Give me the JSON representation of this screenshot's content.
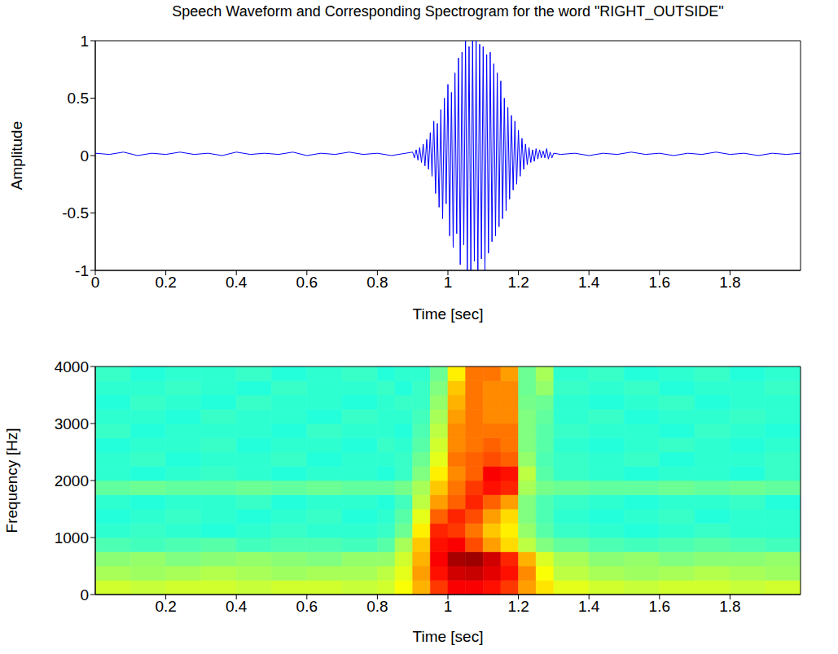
{
  "chart_data": [
    {
      "type": "line",
      "title": "Speech Waveform and Corresponding Spectrogram for the word \"RIGHT_OUTSIDE\"",
      "x_label": "Time [sec]",
      "y_label": "Amplitude",
      "color": "#0000ff",
      "grid": false,
      "xlim": [
        0,
        2
      ],
      "xticks": [
        0,
        0.2,
        0.4,
        0.6,
        0.8,
        1,
        1.2,
        1.4,
        1.6,
        1.8
      ],
      "ylim": [
        -1,
        1
      ],
      "yticks": [
        -1,
        -0.5,
        0,
        0.5,
        1
      ],
      "x": [
        0,
        0.04,
        0.08,
        0.12,
        0.16,
        0.2,
        0.24,
        0.28,
        0.32,
        0.36,
        0.4,
        0.44,
        0.48,
        0.52,
        0.56,
        0.6,
        0.64,
        0.68,
        0.72,
        0.76,
        0.8,
        0.84,
        0.88,
        0.9,
        0.905,
        0.91,
        0.915,
        0.92,
        0.925,
        0.93,
        0.935,
        0.94,
        0.945,
        0.95,
        0.955,
        0.96,
        0.965,
        0.97,
        0.975,
        0.98,
        0.985,
        0.99,
        0.995,
        1.0,
        1.005,
        1.01,
        1.015,
        1.02,
        1.025,
        1.03,
        1.035,
        1.04,
        1.045,
        1.05,
        1.055,
        1.06,
        1.065,
        1.07,
        1.075,
        1.08,
        1.085,
        1.09,
        1.095,
        1.1,
        1.105,
        1.11,
        1.115,
        1.12,
        1.125,
        1.13,
        1.135,
        1.14,
        1.145,
        1.15,
        1.155,
        1.16,
        1.165,
        1.17,
        1.175,
        1.18,
        1.185,
        1.19,
        1.195,
        1.2,
        1.205,
        1.21,
        1.215,
        1.22,
        1.225,
        1.23,
        1.235,
        1.24,
        1.245,
        1.25,
        1.255,
        1.26,
        1.265,
        1.27,
        1.275,
        1.28,
        1.285,
        1.29,
        1.295,
        1.3,
        1.32,
        1.36,
        1.4,
        1.44,
        1.48,
        1.52,
        1.56,
        1.6,
        1.64,
        1.68,
        1.72,
        1.76,
        1.8,
        1.84,
        1.88,
        1.92,
        1.96,
        2.0
      ],
      "values": [
        0.02,
        0.01,
        0.03,
        0.0,
        0.02,
        0.01,
        0.03,
        0.01,
        0.02,
        0.0,
        0.03,
        0.01,
        0.02,
        0.01,
        0.03,
        0.0,
        0.02,
        0.01,
        0.03,
        0.01,
        0.02,
        0.0,
        0.02,
        0.03,
        -0.02,
        0.05,
        -0.04,
        0.07,
        -0.06,
        0.1,
        -0.09,
        0.14,
        -0.12,
        0.2,
        -0.18,
        0.3,
        -0.33,
        0.28,
        -0.45,
        0.4,
        -0.55,
        0.5,
        -0.42,
        0.62,
        -0.7,
        0.55,
        -0.8,
        0.72,
        -0.68,
        0.85,
        -0.95,
        0.9,
        -0.78,
        1.0,
        -1.0,
        0.95,
        -1.0,
        1.0,
        -0.92,
        1.0,
        -1.0,
        0.97,
        -0.9,
        0.95,
        -1.0,
        0.88,
        -0.85,
        0.9,
        -0.75,
        0.8,
        -0.7,
        0.72,
        -0.62,
        0.65,
        -0.55,
        0.5,
        -0.48,
        0.42,
        -0.38,
        0.35,
        -0.3,
        0.3,
        -0.25,
        0.22,
        -0.18,
        0.15,
        -0.12,
        0.1,
        -0.08,
        0.07,
        -0.06,
        0.05,
        -0.05,
        0.06,
        -0.03,
        0.05,
        -0.02,
        0.04,
        -0.02,
        0.06,
        -0.03,
        0.03,
        -0.02,
        0.02,
        0.01,
        0.02,
        0.0,
        0.02,
        0.01,
        0.03,
        0.01,
        0.02,
        0.0,
        0.02,
        0.01,
        0.03,
        0.01,
        0.02,
        0.0,
        0.02,
        0.01,
        0.02
      ]
    },
    {
      "type": "heatmap",
      "x_label": "Time [sec]",
      "y_label": "Frequency [Hz]",
      "xlim": [
        0,
        2
      ],
      "xticks": [
        0.2,
        0.4,
        0.6,
        0.8,
        1,
        1.2,
        1.4,
        1.6,
        1.8
      ],
      "ylim": [
        0,
        4000
      ],
      "yticks": [
        0,
        1000,
        2000,
        3000,
        4000
      ],
      "time_bins": [
        0,
        0.1,
        0.2,
        0.3,
        0.4,
        0.5,
        0.6,
        0.7,
        0.8,
        0.85,
        0.9,
        0.95,
        1.0,
        1.05,
        1.1,
        1.15,
        1.2,
        1.25,
        1.3,
        1.4,
        1.5,
        1.6,
        1.7,
        1.8,
        1.9,
        2.0
      ],
      "frequency_bins": [
        0,
        250,
        500,
        750,
        1000,
        1250,
        1500,
        1750,
        2000,
        2250,
        2500,
        2750,
        3000,
        3250,
        3500,
        3750,
        4000
      ],
      "zlim": [
        0,
        10
      ],
      "cells": [
        [
          5.8,
          5.7,
          5.8,
          5.8,
          5.7,
          5.8,
          5.8,
          5.7,
          5.8,
          6.2,
          7.0,
          8.2,
          8.8,
          8.8,
          8.6,
          8.2,
          7.2,
          6.5,
          6.0,
          5.8,
          5.7,
          5.8,
          5.8,
          5.7,
          5.8
        ],
        [
          5.4,
          5.3,
          5.4,
          5.5,
          5.4,
          5.3,
          5.4,
          5.4,
          5.6,
          6.0,
          7.2,
          8.6,
          9.2,
          9.3,
          9.0,
          8.6,
          7.4,
          6.2,
          5.6,
          5.4,
          5.3,
          5.4,
          5.5,
          5.4,
          5.3
        ],
        [
          5.1,
          5.2,
          5.0,
          5.1,
          5.2,
          5.1,
          5.0,
          5.2,
          5.2,
          5.8,
          7.0,
          8.8,
          9.6,
          9.7,
          9.2,
          8.4,
          7.0,
          5.9,
          5.4,
          5.1,
          5.2,
          5.0,
          5.1,
          5.1,
          5.2
        ],
        [
          4.5,
          4.4,
          4.5,
          4.6,
          4.4,
          4.5,
          4.5,
          4.4,
          4.6,
          5.4,
          6.8,
          8.6,
          8.8,
          8.0,
          7.2,
          6.6,
          5.6,
          5.0,
          4.7,
          4.5,
          4.4,
          4.5,
          4.6,
          4.5,
          4.4
        ],
        [
          4.2,
          4.3,
          4.2,
          4.1,
          4.2,
          4.3,
          4.2,
          4.2,
          4.3,
          4.8,
          6.4,
          8.4,
          8.2,
          7.6,
          6.8,
          6.4,
          5.2,
          4.6,
          4.3,
          4.2,
          4.1,
          4.2,
          4.3,
          4.2,
          4.2
        ],
        [
          4.1,
          4.2,
          4.3,
          4.2,
          4.1,
          4.2,
          4.3,
          4.1,
          4.2,
          4.6,
          6.0,
          7.8,
          8.4,
          8.0,
          7.2,
          6.6,
          5.0,
          4.5,
          4.2,
          4.1,
          4.2,
          4.3,
          4.1,
          4.2,
          4.2
        ],
        [
          4.2,
          4.1,
          4.2,
          4.2,
          4.3,
          4.1,
          4.2,
          4.2,
          4.1,
          4.4,
          5.6,
          7.2,
          7.8,
          8.4,
          7.8,
          7.2,
          5.0,
          4.5,
          4.3,
          4.2,
          4.1,
          4.2,
          4.2,
          4.3,
          4.1
        ],
        [
          4.7,
          4.8,
          4.7,
          4.7,
          4.8,
          4.7,
          4.8,
          4.7,
          4.7,
          4.9,
          5.4,
          6.8,
          7.6,
          8.2,
          8.6,
          8.4,
          5.4,
          4.9,
          4.8,
          4.7,
          4.7,
          4.8,
          4.7,
          4.8,
          4.7
        ],
        [
          4.2,
          4.1,
          4.2,
          4.3,
          4.2,
          4.1,
          4.2,
          4.2,
          4.1,
          4.3,
          5.0,
          6.4,
          7.4,
          7.8,
          8.8,
          8.6,
          5.6,
          4.6,
          4.3,
          4.2,
          4.1,
          4.2,
          4.2,
          4.1,
          4.3
        ],
        [
          4.2,
          4.3,
          4.1,
          4.2,
          4.2,
          4.3,
          4.1,
          4.2,
          4.2,
          4.3,
          4.8,
          6.0,
          7.6,
          7.8,
          8.0,
          7.8,
          5.2,
          4.5,
          4.3,
          4.2,
          4.3,
          4.1,
          4.2,
          4.2,
          4.3
        ],
        [
          4.1,
          4.2,
          4.2,
          4.3,
          4.1,
          4.2,
          4.2,
          4.1,
          4.3,
          4.2,
          4.6,
          5.8,
          7.4,
          7.6,
          7.8,
          7.6,
          5.0,
          4.6,
          4.2,
          4.1,
          4.2,
          4.3,
          4.2,
          4.1,
          4.2
        ],
        [
          4.3,
          4.1,
          4.2,
          4.2,
          4.2,
          4.1,
          4.3,
          4.2,
          4.2,
          4.1,
          4.5,
          5.6,
          7.4,
          7.6,
          7.6,
          7.6,
          5.0,
          4.6,
          4.3,
          4.2,
          4.2,
          4.1,
          4.3,
          4.2,
          4.1
        ],
        [
          4.2,
          4.2,
          4.1,
          4.3,
          4.2,
          4.2,
          4.1,
          4.3,
          4.2,
          4.2,
          4.4,
          5.4,
          7.2,
          7.6,
          7.4,
          7.4,
          5.0,
          4.7,
          4.2,
          4.3,
          4.1,
          4.2,
          4.2,
          4.3,
          4.2
        ],
        [
          4.1,
          4.3,
          4.2,
          4.1,
          4.3,
          4.2,
          4.2,
          4.1,
          4.2,
          4.3,
          4.3,
          5.2,
          7.0,
          7.6,
          7.4,
          7.4,
          4.9,
          4.8,
          4.2,
          4.1,
          4.2,
          4.3,
          4.1,
          4.2,
          4.2
        ],
        [
          4.2,
          4.2,
          4.3,
          4.2,
          4.1,
          4.3,
          4.2,
          4.2,
          4.3,
          4.1,
          4.3,
          5.0,
          6.8,
          7.6,
          7.4,
          7.4,
          4.8,
          5.2,
          4.3,
          4.2,
          4.3,
          4.1,
          4.2,
          4.2,
          4.3
        ],
        [
          4.3,
          4.1,
          4.2,
          4.2,
          4.3,
          4.1,
          4.2,
          4.3,
          4.1,
          4.2,
          4.2,
          4.8,
          6.4,
          7.6,
          7.6,
          7.2,
          4.8,
          5.4,
          4.2,
          4.3,
          4.1,
          4.2,
          4.3,
          4.1,
          4.2
        ]
      ]
    }
  ]
}
